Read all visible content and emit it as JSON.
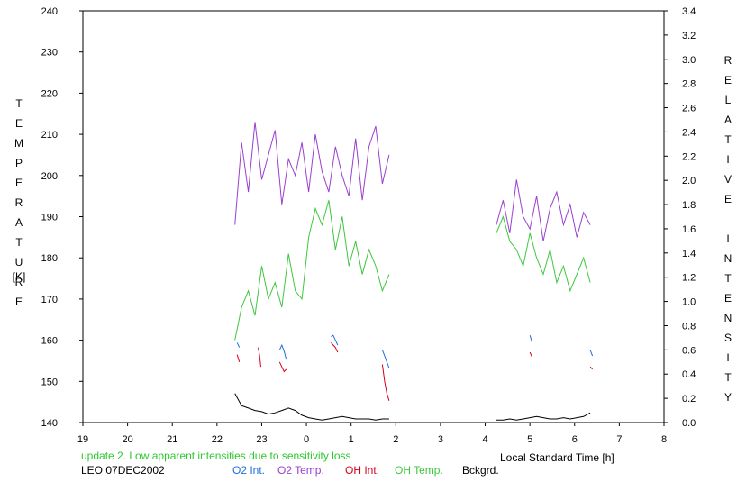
{
  "chart_data": {
    "type": "line",
    "ylabel_left_letters": [
      "T",
      "E",
      "M",
      "P",
      "E",
      "R",
      "A",
      "T",
      "U",
      "R",
      "E"
    ],
    "ylabel_left_unit": "[K]",
    "ylabel_right_letters": [
      "R",
      "E",
      "L",
      "A",
      "T",
      "I",
      "V",
      "E",
      "",
      "I",
      "N",
      "T",
      "E",
      "N",
      "S",
      "I",
      "T",
      "Y"
    ],
    "xlabel": "Local Standard Time [h]",
    "x_tick_labels": [
      "19",
      "20",
      "21",
      "22",
      "23",
      "0",
      "1",
      "2",
      "3",
      "4",
      "5",
      "6",
      "7",
      "8"
    ],
    "x_range_hours": [
      19,
      32
    ],
    "y_left_ticks": [
      "140",
      "150",
      "160",
      "170",
      "180",
      "190",
      "200",
      "210",
      "220",
      "230",
      "240"
    ],
    "y_left_range": [
      140,
      240
    ],
    "y_right_ticks": [
      "0.0",
      "0.2",
      "0.4",
      "0.6",
      "0.8",
      "1.0",
      "1.2",
      "1.4",
      "1.6",
      "1.8",
      "2.0",
      "2.2",
      "2.4",
      "2.6",
      "2.8",
      "3.0",
      "3.2",
      "3.4"
    ],
    "y_right_range": [
      0.0,
      3.4
    ],
    "note": "update 2. Low apparent intensities due to sensitivity loss",
    "station_date": "LEO 07DEC2002",
    "legend": [
      {
        "label": "O2 Int.",
        "color": "#1f6fdc"
      },
      {
        "label": "O2 Temp.",
        "color": "#9a3fd0"
      },
      {
        "label": "OH Int.",
        "color": "#d4001c"
      },
      {
        "label": "OH Temp.",
        "color": "#3cc83c"
      },
      {
        "label": "Bckgrd.",
        "color": "#000000"
      }
    ],
    "series": [
      {
        "name": "O2 Temp.",
        "axis": "left",
        "color": "#9a3fd0",
        "segments": [
          {
            "x": [
              22.4,
              22.55,
              22.7,
              22.85,
              23.0,
              23.15,
              23.3,
              23.45,
              23.6,
              23.75,
              23.9,
              24.05,
              24.2,
              24.35,
              24.5,
              24.65,
              24.8,
              24.95,
              25.1,
              25.25,
              25.4,
              25.55,
              25.7,
              25.85
            ],
            "y": [
              188,
              208,
              196,
              213,
              199,
              205,
              211,
              193,
              204,
              200,
              208,
              196,
              210,
              201,
              196,
              207,
              200,
              195,
              209,
              194,
              207,
              212,
              198,
              205
            ]
          },
          {
            "x": [
              28.25,
              28.4,
              28.55,
              28.7,
              28.85,
              29.0,
              29.15,
              29.3,
              29.45,
              29.6,
              29.75,
              29.9,
              30.05,
              30.2,
              30.35
            ],
            "y": [
              188,
              194,
              186,
              199,
              190,
              187,
              195,
              184,
              192,
              196,
              188,
              193,
              185,
              191,
              188
            ]
          }
        ]
      },
      {
        "name": "OH Temp.",
        "axis": "left",
        "color": "#3cc83c",
        "segments": [
          {
            "x": [
              22.4,
              22.55,
              22.7,
              22.85,
              23.0,
              23.15,
              23.3,
              23.45,
              23.6,
              23.75,
              23.9,
              24.05,
              24.2,
              24.35,
              24.5,
              24.65,
              24.8,
              24.95,
              25.1,
              25.25,
              25.4,
              25.55,
              25.7,
              25.85
            ],
            "y": [
              160,
              168,
              172,
              166,
              178,
              170,
              174,
              168,
              181,
              172,
              170,
              185,
              192,
              188,
              194,
              182,
              190,
              178,
              184,
              176,
              182,
              178,
              172,
              176
            ]
          },
          {
            "x": [
              28.25,
              28.4,
              28.55,
              28.7,
              28.85,
              29.0,
              29.15,
              29.3,
              29.45,
              29.6,
              29.75,
              29.9,
              30.05,
              30.2,
              30.35
            ],
            "y": [
              186,
              190,
              184,
              182,
              178,
              186,
              180,
              176,
              182,
              174,
              178,
              172,
              176,
              180,
              174
            ]
          }
        ]
      },
      {
        "name": "O2 Int.",
        "axis": "right",
        "color": "#1f6fdc",
        "segments": [
          {
            "x": [
              22.45,
              22.5
            ],
            "y": [
              0.66,
              0.62
            ]
          },
          {
            "x": [
              23.4,
              23.45,
              23.5,
              23.55
            ],
            "y": [
              0.6,
              0.64,
              0.59,
              0.52
            ]
          },
          {
            "x": [
              24.55,
              24.6,
              24.65,
              24.7
            ],
            "y": [
              0.71,
              0.72,
              0.68,
              0.64
            ]
          },
          {
            "x": [
              25.7,
              25.75,
              25.8,
              25.85
            ],
            "y": [
              0.6,
              0.55,
              0.5,
              0.45
            ]
          },
          {
            "x": [
              29.0,
              29.05
            ],
            "y": [
              0.72,
              0.66
            ]
          },
          {
            "x": [
              30.35,
              30.4
            ],
            "y": [
              0.6,
              0.55
            ]
          }
        ]
      },
      {
        "name": "OH Int.",
        "axis": "right",
        "color": "#d4001c",
        "segments": [
          {
            "x": [
              22.45,
              22.5
            ],
            "y": [
              0.56,
              0.5
            ]
          },
          {
            "x": [
              22.92,
              22.95,
              22.98
            ],
            "y": [
              0.62,
              0.56,
              0.46
            ]
          },
          {
            "x": [
              23.4,
              23.45,
              23.5,
              23.55
            ],
            "y": [
              0.5,
              0.46,
              0.42,
              0.44
            ]
          },
          {
            "x": [
              24.55,
              24.6,
              24.65,
              24.7
            ],
            "y": [
              0.66,
              0.64,
              0.62,
              0.58
            ]
          },
          {
            "x": [
              25.7,
              25.75,
              25.8,
              25.85
            ],
            "y": [
              0.48,
              0.34,
              0.24,
              0.18
            ]
          },
          {
            "x": [
              29.0,
              29.05
            ],
            "y": [
              0.58,
              0.54
            ]
          },
          {
            "x": [
              30.35,
              30.4
            ],
            "y": [
              0.46,
              0.44
            ]
          }
        ]
      },
      {
        "name": "Bckgrd.",
        "axis": "right",
        "color": "#000000",
        "segments": [
          {
            "x": [
              22.4,
              22.55,
              22.7,
              22.85,
              23.0,
              23.15,
              23.3,
              23.45,
              23.6,
              23.75,
              23.9,
              24.05,
              24.2,
              24.35,
              24.5,
              24.65,
              24.8,
              24.95,
              25.1,
              25.25,
              25.4,
              25.55,
              25.7,
              25.85
            ],
            "y": [
              0.24,
              0.14,
              0.12,
              0.1,
              0.09,
              0.07,
              0.08,
              0.1,
              0.12,
              0.1,
              0.06,
              0.04,
              0.03,
              0.02,
              0.03,
              0.04,
              0.05,
              0.04,
              0.03,
              0.03,
              0.03,
              0.02,
              0.03,
              0.03
            ]
          },
          {
            "x": [
              28.25,
              28.4,
              28.55,
              28.7,
              28.85,
              29.0,
              29.15,
              29.3,
              29.45,
              29.6,
              29.75,
              29.9,
              30.05,
              30.2,
              30.35
            ],
            "y": [
              0.02,
              0.02,
              0.03,
              0.02,
              0.03,
              0.04,
              0.05,
              0.04,
              0.03,
              0.03,
              0.04,
              0.03,
              0.04,
              0.05,
              0.08
            ]
          }
        ]
      }
    ]
  }
}
